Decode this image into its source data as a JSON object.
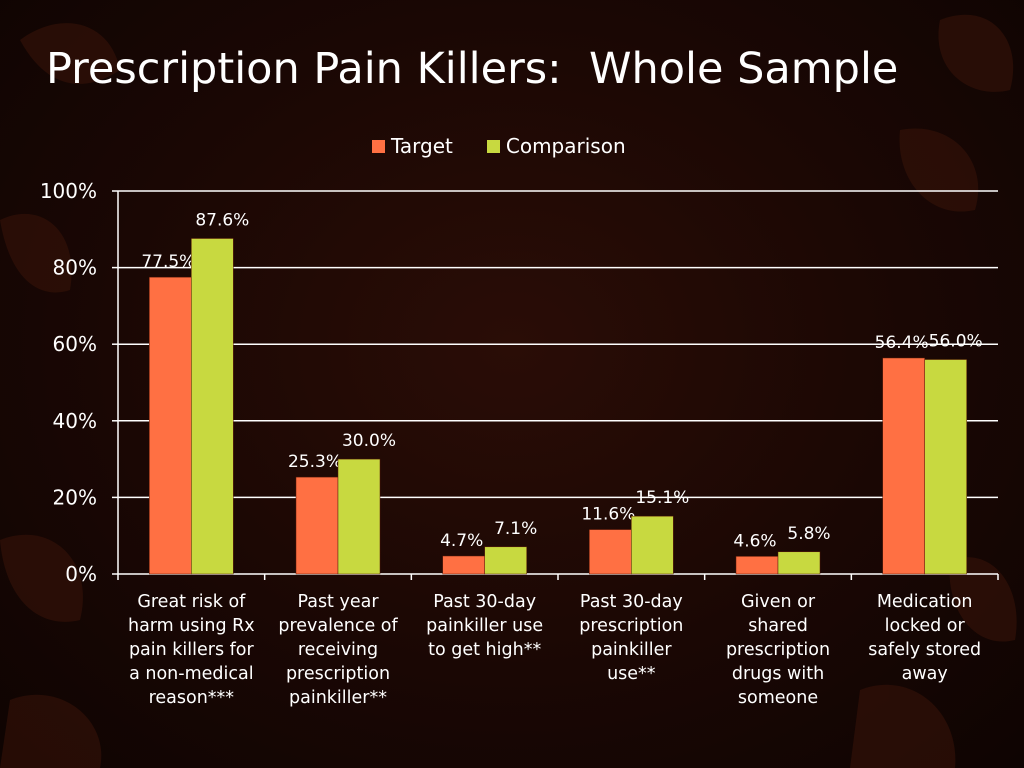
{
  "title": "Prescription Pain Killers:  Whole Sample",
  "colors": {
    "target": "#ff7043",
    "comparison": "#c8d940",
    "text": "#ffffff",
    "grid": "#ffffff"
  },
  "chart_data": {
    "type": "bar",
    "title": "",
    "xlabel": "",
    "ylabel": "",
    "ylim": [
      0,
      100
    ],
    "yticks": [
      "0%",
      "20%",
      "40%",
      "60%",
      "80%",
      "100%"
    ],
    "grid": true,
    "legend_position": "top",
    "categories": [
      [
        "Great risk of",
        "harm using Rx",
        "pain killers for",
        "a non-medical",
        "reason***"
      ],
      [
        "Past year",
        "prevalence of",
        "receiving",
        "prescription",
        "painkiller**"
      ],
      [
        "Past 30-day",
        "painkiller use",
        "to get high**"
      ],
      [
        "Past 30-day",
        "prescription",
        "painkiller",
        "use**"
      ],
      [
        "Given or",
        "shared",
        "prescription",
        "drugs with",
        "someone"
      ],
      [
        "Medication",
        "locked or",
        "safely stored",
        "away"
      ]
    ],
    "series": [
      {
        "name": "Target",
        "values": [
          77.5,
          25.3,
          4.7,
          11.6,
          4.6,
          56.4
        ],
        "labels": [
          "77.5%",
          "25.3%",
          "4.7%",
          "11.6%",
          "4.6%",
          "56.4%"
        ]
      },
      {
        "name": "Comparison",
        "values": [
          87.6,
          30.0,
          7.1,
          15.1,
          5.8,
          56.0
        ],
        "labels": [
          "87.6%",
          "30.0%",
          "7.1%",
          "15.1%",
          "5.8%",
          "56.0%"
        ]
      }
    ]
  }
}
